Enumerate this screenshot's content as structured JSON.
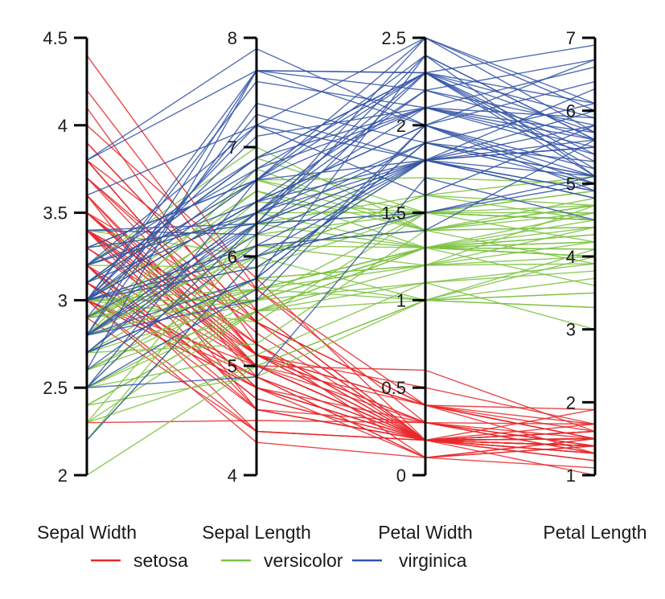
{
  "chart_data": {
    "type": "line",
    "subtype": "parallel-coordinates",
    "title": "",
    "axes": [
      {
        "name": "Sepal Width",
        "ylim": [
          2,
          4.5
        ],
        "ticks": [
          2,
          2.5,
          3,
          3.5,
          4,
          4.5
        ],
        "tick_labels": [
          "2",
          "2.5",
          "3",
          "3.5",
          "4",
          "4.5"
        ]
      },
      {
        "name": "Sepal Length",
        "ylim": [
          4,
          8
        ],
        "ticks": [
          4,
          5,
          6,
          7,
          8
        ],
        "tick_labels": [
          "4",
          "5",
          "6",
          "7",
          "8"
        ]
      },
      {
        "name": "Petal Width",
        "ylim": [
          0,
          2.5
        ],
        "ticks": [
          0,
          0.5,
          1,
          1.5,
          2,
          2.5
        ],
        "tick_labels": [
          "0",
          "0.5",
          "1",
          "1.5",
          "2",
          "2.5"
        ]
      },
      {
        "name": "Petal Length",
        "ylim": [
          1,
          7
        ],
        "ticks": [
          1,
          2,
          3,
          4,
          5,
          6,
          7
        ],
        "tick_labels": [
          "1",
          "2",
          "3",
          "4",
          "5",
          "6",
          "7"
        ]
      }
    ],
    "legend": {
      "placement": "bottom",
      "entries": [
        {
          "name": "setosa",
          "color": "#e8282b"
        },
        {
          "name": "versicolor",
          "color": "#7cc242"
        },
        {
          "name": "virginica",
          "color": "#3353a6"
        }
      ]
    },
    "grid": false,
    "series": [
      {
        "name": "setosa",
        "color": "#e8282b",
        "values": [
          [
            3.5,
            5.1,
            0.2,
            1.4
          ],
          [
            3.0,
            4.9,
            0.2,
            1.4
          ],
          [
            3.2,
            4.7,
            0.2,
            1.3
          ],
          [
            3.1,
            4.6,
            0.2,
            1.5
          ],
          [
            3.6,
            5.0,
            0.2,
            1.4
          ],
          [
            3.9,
            5.4,
            0.4,
            1.7
          ],
          [
            3.4,
            4.6,
            0.3,
            1.4
          ],
          [
            3.4,
            5.0,
            0.2,
            1.5
          ],
          [
            2.9,
            4.4,
            0.2,
            1.4
          ],
          [
            3.1,
            4.9,
            0.1,
            1.5
          ],
          [
            3.7,
            5.4,
            0.2,
            1.5
          ],
          [
            3.4,
            4.8,
            0.2,
            1.6
          ],
          [
            3.0,
            4.8,
            0.1,
            1.4
          ],
          [
            3.0,
            4.3,
            0.1,
            1.1
          ],
          [
            4.0,
            5.8,
            0.2,
            1.2
          ],
          [
            4.4,
            5.7,
            0.4,
            1.5
          ],
          [
            3.9,
            5.4,
            0.4,
            1.3
          ],
          [
            3.5,
            5.1,
            0.3,
            1.4
          ],
          [
            3.8,
            5.7,
            0.3,
            1.7
          ],
          [
            3.8,
            5.1,
            0.3,
            1.5
          ],
          [
            3.4,
            5.4,
            0.2,
            1.7
          ],
          [
            3.7,
            5.1,
            0.4,
            1.5
          ],
          [
            3.6,
            4.6,
            0.2,
            1.0
          ],
          [
            3.3,
            5.1,
            0.5,
            1.7
          ],
          [
            3.4,
            4.8,
            0.2,
            1.9
          ],
          [
            3.0,
            5.0,
            0.2,
            1.6
          ],
          [
            3.4,
            5.0,
            0.4,
            1.6
          ],
          [
            3.5,
            5.2,
            0.2,
            1.5
          ],
          [
            3.4,
            5.2,
            0.2,
            1.4
          ],
          [
            3.2,
            4.7,
            0.2,
            1.6
          ],
          [
            3.1,
            4.8,
            0.2,
            1.6
          ],
          [
            3.4,
            5.4,
            0.4,
            1.5
          ],
          [
            4.1,
            5.2,
            0.1,
            1.5
          ],
          [
            4.2,
            5.5,
            0.2,
            1.4
          ],
          [
            3.1,
            4.9,
            0.2,
            1.5
          ],
          [
            3.2,
            5.0,
            0.2,
            1.2
          ],
          [
            3.5,
            5.5,
            0.2,
            1.3
          ],
          [
            3.6,
            4.9,
            0.1,
            1.4
          ],
          [
            3.0,
            4.4,
            0.2,
            1.3
          ],
          [
            3.4,
            5.1,
            0.2,
            1.5
          ],
          [
            3.5,
            5.0,
            0.3,
            1.3
          ],
          [
            2.3,
            4.5,
            0.3,
            1.3
          ],
          [
            3.2,
            4.4,
            0.2,
            1.3
          ],
          [
            3.5,
            5.0,
            0.6,
            1.6
          ],
          [
            3.8,
            5.1,
            0.4,
            1.9
          ],
          [
            3.0,
            4.8,
            0.3,
            1.4
          ],
          [
            3.8,
            5.1,
            0.2,
            1.6
          ],
          [
            3.2,
            4.6,
            0.2,
            1.4
          ],
          [
            3.7,
            5.3,
            0.2,
            1.5
          ],
          [
            3.3,
            5.0,
            0.2,
            1.4
          ]
        ]
      },
      {
        "name": "versicolor",
        "color": "#7cc242",
        "values": [
          [
            3.2,
            7.0,
            1.4,
            4.7
          ],
          [
            3.2,
            6.4,
            1.5,
            4.5
          ],
          [
            3.1,
            6.9,
            1.5,
            4.9
          ],
          [
            2.3,
            5.5,
            1.3,
            4.0
          ],
          [
            2.8,
            6.5,
            1.5,
            4.6
          ],
          [
            2.8,
            5.7,
            1.3,
            4.5
          ],
          [
            3.3,
            6.3,
            1.6,
            4.7
          ],
          [
            2.4,
            4.9,
            1.0,
            3.3
          ],
          [
            2.9,
            6.6,
            1.3,
            4.6
          ],
          [
            2.7,
            5.2,
            1.4,
            3.9
          ],
          [
            2.0,
            5.0,
            1.0,
            3.5
          ],
          [
            3.0,
            5.9,
            1.5,
            4.2
          ],
          [
            2.2,
            6.0,
            1.0,
            4.0
          ],
          [
            2.9,
            6.1,
            1.4,
            4.7
          ],
          [
            2.9,
            5.6,
            1.3,
            3.6
          ],
          [
            3.1,
            6.7,
            1.4,
            4.4
          ],
          [
            3.0,
            5.6,
            1.5,
            4.5
          ],
          [
            2.7,
            5.8,
            1.0,
            4.1
          ],
          [
            2.2,
            6.2,
            1.5,
            4.5
          ],
          [
            2.5,
            5.6,
            1.1,
            3.9
          ],
          [
            3.2,
            5.9,
            1.8,
            4.8
          ],
          [
            2.8,
            6.1,
            1.3,
            4.0
          ],
          [
            2.5,
            6.3,
            1.5,
            4.9
          ],
          [
            2.8,
            6.1,
            1.2,
            4.7
          ],
          [
            2.9,
            6.4,
            1.3,
            4.3
          ],
          [
            3.0,
            6.6,
            1.4,
            4.4
          ],
          [
            2.8,
            6.8,
            1.4,
            4.8
          ],
          [
            3.0,
            6.7,
            1.7,
            5.0
          ],
          [
            2.9,
            6.0,
            1.5,
            4.5
          ],
          [
            2.6,
            5.7,
            1.0,
            3.5
          ],
          [
            2.4,
            5.5,
            1.1,
            3.8
          ],
          [
            2.4,
            5.5,
            1.0,
            3.7
          ],
          [
            2.7,
            5.8,
            1.2,
            3.9
          ],
          [
            2.7,
            6.0,
            1.6,
            5.1
          ],
          [
            3.0,
            5.4,
            1.5,
            4.5
          ],
          [
            3.4,
            6.0,
            1.6,
            4.5
          ],
          [
            3.1,
            6.7,
            1.5,
            4.7
          ],
          [
            2.3,
            6.3,
            1.3,
            4.4
          ],
          [
            3.0,
            5.6,
            1.3,
            4.1
          ],
          [
            2.5,
            5.5,
            1.3,
            4.0
          ],
          [
            2.6,
            5.5,
            1.2,
            4.4
          ],
          [
            3.0,
            6.1,
            1.4,
            4.6
          ],
          [
            2.6,
            5.8,
            1.2,
            4.0
          ],
          [
            2.3,
            5.0,
            1.0,
            3.3
          ],
          [
            2.7,
            5.6,
            1.3,
            4.2
          ],
          [
            3.0,
            5.7,
            1.2,
            4.2
          ],
          [
            2.9,
            5.7,
            1.3,
            4.2
          ],
          [
            2.9,
            6.2,
            1.3,
            4.3
          ],
          [
            2.5,
            5.1,
            1.1,
            3.0
          ],
          [
            2.8,
            5.7,
            1.3,
            4.1
          ]
        ]
      },
      {
        "name": "virginica",
        "color": "#3353a6",
        "values": [
          [
            3.3,
            6.3,
            2.5,
            6.0
          ],
          [
            2.7,
            5.8,
            1.9,
            5.1
          ],
          [
            3.0,
            7.1,
            2.1,
            5.9
          ],
          [
            2.9,
            6.3,
            1.8,
            5.6
          ],
          [
            3.0,
            6.5,
            2.2,
            5.8
          ],
          [
            3.0,
            7.6,
            2.1,
            6.6
          ],
          [
            2.5,
            4.9,
            1.7,
            4.5
          ],
          [
            2.9,
            7.3,
            1.8,
            6.3
          ],
          [
            2.5,
            6.7,
            1.8,
            5.8
          ],
          [
            3.6,
            7.2,
            2.5,
            6.1
          ],
          [
            3.2,
            6.5,
            2.0,
            5.1
          ],
          [
            2.7,
            6.4,
            1.9,
            5.3
          ],
          [
            3.0,
            6.8,
            2.1,
            5.5
          ],
          [
            2.5,
            5.7,
            2.0,
            5.0
          ],
          [
            2.8,
            5.8,
            2.4,
            5.1
          ],
          [
            3.2,
            6.4,
            2.3,
            5.3
          ],
          [
            3.0,
            6.5,
            1.8,
            5.5
          ],
          [
            3.8,
            7.7,
            2.2,
            6.7
          ],
          [
            2.6,
            7.7,
            2.3,
            6.9
          ],
          [
            2.2,
            6.0,
            1.5,
            5.0
          ],
          [
            3.2,
            6.9,
            2.3,
            5.7
          ],
          [
            2.8,
            5.6,
            2.0,
            4.9
          ],
          [
            2.8,
            7.7,
            2.0,
            6.7
          ],
          [
            2.7,
            6.3,
            1.8,
            4.9
          ],
          [
            3.3,
            6.7,
            2.1,
            5.7
          ],
          [
            3.2,
            7.2,
            1.8,
            6.0
          ],
          [
            2.8,
            6.2,
            1.8,
            4.8
          ],
          [
            3.0,
            6.1,
            1.8,
            4.9
          ],
          [
            2.8,
            6.4,
            2.1,
            5.6
          ],
          [
            3.0,
            7.2,
            1.6,
            5.8
          ],
          [
            2.8,
            7.4,
            1.9,
            6.1
          ],
          [
            3.8,
            7.9,
            2.0,
            6.4
          ],
          [
            2.8,
            6.4,
            2.2,
            5.6
          ],
          [
            2.8,
            6.3,
            1.5,
            5.1
          ],
          [
            2.6,
            6.1,
            1.4,
            5.6
          ],
          [
            3.0,
            7.7,
            2.3,
            6.1
          ],
          [
            3.4,
            6.3,
            2.4,
            5.6
          ],
          [
            3.1,
            6.4,
            1.8,
            5.5
          ],
          [
            3.0,
            6.0,
            1.8,
            4.8
          ],
          [
            3.1,
            6.9,
            2.1,
            5.4
          ],
          [
            3.1,
            6.7,
            2.4,
            5.6
          ],
          [
            3.1,
            6.9,
            2.3,
            5.1
          ],
          [
            2.7,
            5.8,
            1.9,
            5.1
          ],
          [
            3.2,
            6.8,
            2.3,
            5.9
          ],
          [
            3.3,
            6.7,
            2.5,
            5.7
          ],
          [
            3.0,
            6.7,
            2.3,
            5.2
          ],
          [
            2.5,
            6.3,
            1.9,
            5.0
          ],
          [
            3.0,
            6.5,
            2.0,
            5.2
          ],
          [
            3.4,
            6.2,
            2.3,
            5.4
          ],
          [
            3.0,
            5.9,
            1.8,
            5.1
          ]
        ]
      }
    ]
  }
}
